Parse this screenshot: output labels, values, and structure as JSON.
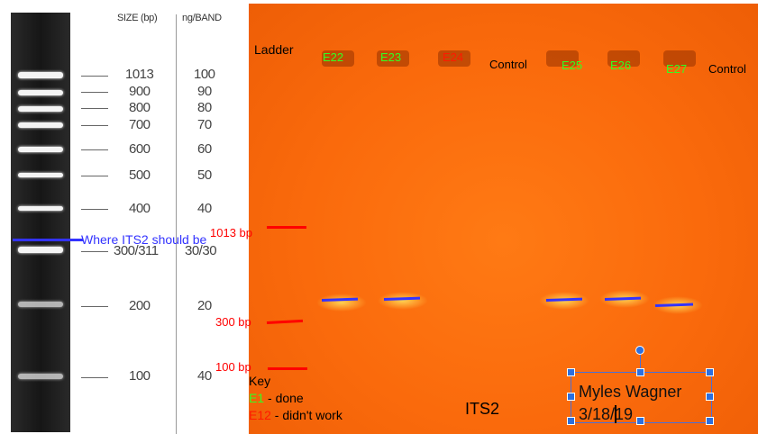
{
  "ladder": {
    "size_header": "SIZE (bp)",
    "ng_header": "ng/BAND",
    "bands": [
      {
        "size": "1013",
        "ng": "100"
      },
      {
        "size": "900",
        "ng": "90"
      },
      {
        "size": "800",
        "ng": "80"
      },
      {
        "size": "700",
        "ng": "70"
      },
      {
        "size": "600",
        "ng": "60"
      },
      {
        "size": "500",
        "ng": "50"
      },
      {
        "size": "400",
        "ng": "40"
      },
      {
        "size": "300/311",
        "ng": "30/30"
      },
      {
        "size": "200",
        "ng": "20"
      },
      {
        "size": "100",
        "ng": "40"
      }
    ]
  },
  "annotation": {
    "its2_note": "Where ITS2 should be"
  },
  "gel": {
    "ladder_label": "Ladder",
    "lanes": [
      {
        "label": "E22",
        "status": "done",
        "color": "#33ff22"
      },
      {
        "label": "E23",
        "status": "done",
        "color": "#33ff22"
      },
      {
        "label": "E24",
        "status": "didn't work",
        "color": "#ff1a00"
      },
      {
        "label": "Control",
        "status": "",
        "color": "#000000"
      },
      {
        "label": "E25",
        "status": "done",
        "color": "#33ff22"
      },
      {
        "label": "E26",
        "status": "done",
        "color": "#33ff22"
      },
      {
        "label": "E27",
        "status": "done",
        "color": "#33ff22"
      },
      {
        "label": "Control",
        "status": "",
        "color": "#000000"
      }
    ],
    "markers": [
      {
        "label": "1013 bp"
      },
      {
        "label": "300 bp"
      },
      {
        "label": "100 bp"
      }
    ],
    "title": "ITS2"
  },
  "key": {
    "heading": "Key",
    "done_code": "E1",
    "done_text": " - done",
    "fail_code": "E12",
    "fail_text": " - didn't work"
  },
  "signature": {
    "name": "Myles Wagner",
    "date": "3/18/19"
  },
  "colors": {
    "gel_orange": "#fa6a0c",
    "done_green": "#33ff22",
    "fail_red": "#ff1a00",
    "annotation_blue": "#3333ff",
    "selection_blue": "#2b6fe0"
  }
}
